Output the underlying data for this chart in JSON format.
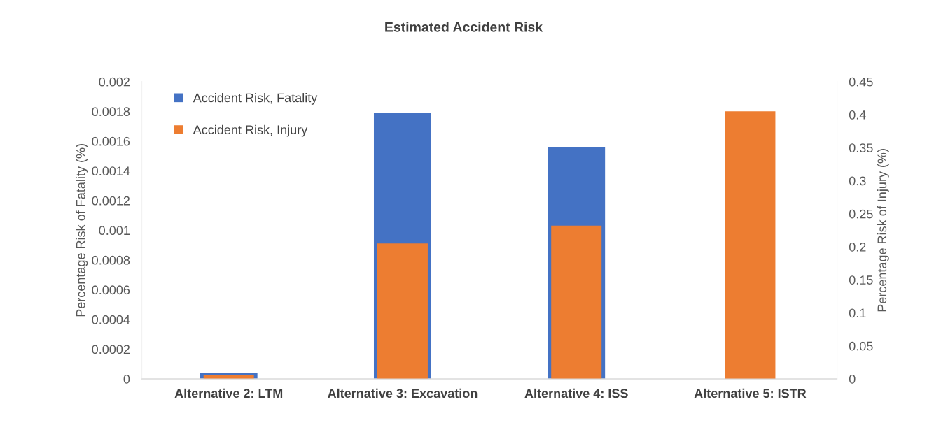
{
  "chart_data": {
    "type": "bar",
    "title": "Estimated Accident Risk",
    "categories": [
      "Alternative 2: LTM",
      "Alternative 3: Excavation",
      "Alternative 4: ISS",
      "Alternative 5: ISTR"
    ],
    "series": [
      {
        "name": "Accident Risk, Fatality",
        "color": "#4472c4",
        "values": [
          4e-05,
          0.00179,
          0.00156,
          null
        ]
      },
      {
        "name": "Accident Risk, Injury",
        "color": "#ed7d31",
        "axis": "y2",
        "values": [
          0.006,
          0.205,
          0.232,
          0.405
        ]
      }
    ],
    "ylabel": "Percentage Risk of Fatality (%)",
    "y2label": "Percentage Risk of Injury (%)",
    "ylim": [
      0,
      0.002
    ],
    "yticks": [
      0,
      0.0002,
      0.0004,
      0.0006,
      0.0008,
      0.001,
      0.0012,
      0.0014,
      0.0016,
      0.0018,
      0.002
    ],
    "y2lim": [
      0,
      0.45
    ],
    "y2ticks": [
      0,
      0.05,
      0.1,
      0.15,
      0.2,
      0.25,
      0.3,
      0.35,
      0.4,
      0.45
    ],
    "grid": false,
    "legend": "top left"
  }
}
